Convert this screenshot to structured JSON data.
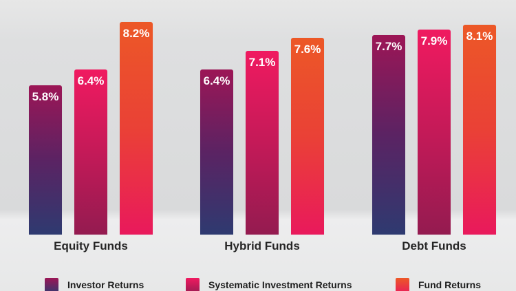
{
  "chart_data": {
    "type": "bar",
    "title": "",
    "categories": [
      "Equity Funds",
      "Hybrid Funds",
      "Debt Funds"
    ],
    "series": [
      {
        "name": "Investor Returns",
        "values": [
          5.8,
          6.4,
          7.7
        ],
        "gradient": [
          "#9c1656",
          "#5b2363",
          "#2e3a70"
        ]
      },
      {
        "name": "Systematic Investment Returns",
        "values": [
          6.4,
          7.1,
          7.9
        ],
        "gradient": [
          "#f01a60",
          "#c41a58",
          "#941b50"
        ]
      },
      {
        "name": "Fund Returns",
        "values": [
          8.2,
          7.6,
          8.1
        ],
        "gradient": [
          "#ec5827",
          "#ea4136",
          "#e9195c"
        ]
      }
    ],
    "value_suffix": "%",
    "value_label_color": "#ffffff",
    "xlabel": "",
    "ylabel": "",
    "ylim": [
      0,
      9
    ],
    "grid": false,
    "axes_shown": false,
    "legend_position": "bottom",
    "background_color": "#dcdddd",
    "category_label_color": "#262626"
  }
}
